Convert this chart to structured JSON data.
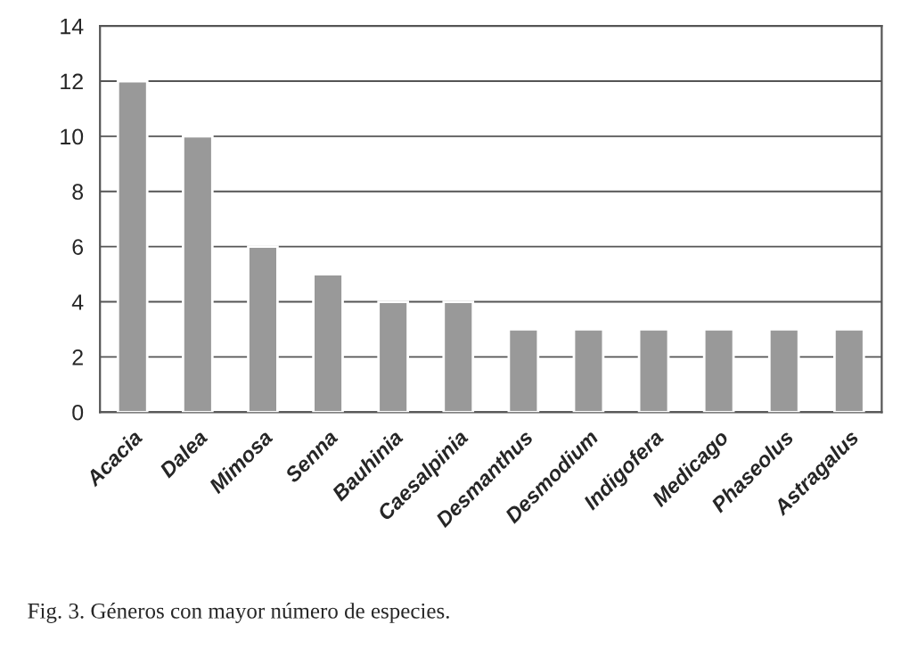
{
  "chart_data": {
    "type": "bar",
    "categories": [
      "Acacia",
      "Dalea",
      "Mimosa",
      "Senna",
      "Bauhinia",
      "Caesalpinia",
      "Desmanthus",
      "Desmodium",
      "Indigofera",
      "Medicago",
      "Phaseolus",
      "Astragalus"
    ],
    "values": [
      12,
      10,
      6,
      5,
      4,
      4,
      3,
      3,
      3,
      3,
      3,
      3
    ],
    "color": "#999999",
    "ylim": [
      0,
      14
    ],
    "yticks": [
      0,
      2,
      4,
      6,
      8,
      10,
      12,
      14
    ],
    "grid": "y",
    "annotations": [
      "Fig. 3. Géneros con mayor número de especies."
    ]
  }
}
